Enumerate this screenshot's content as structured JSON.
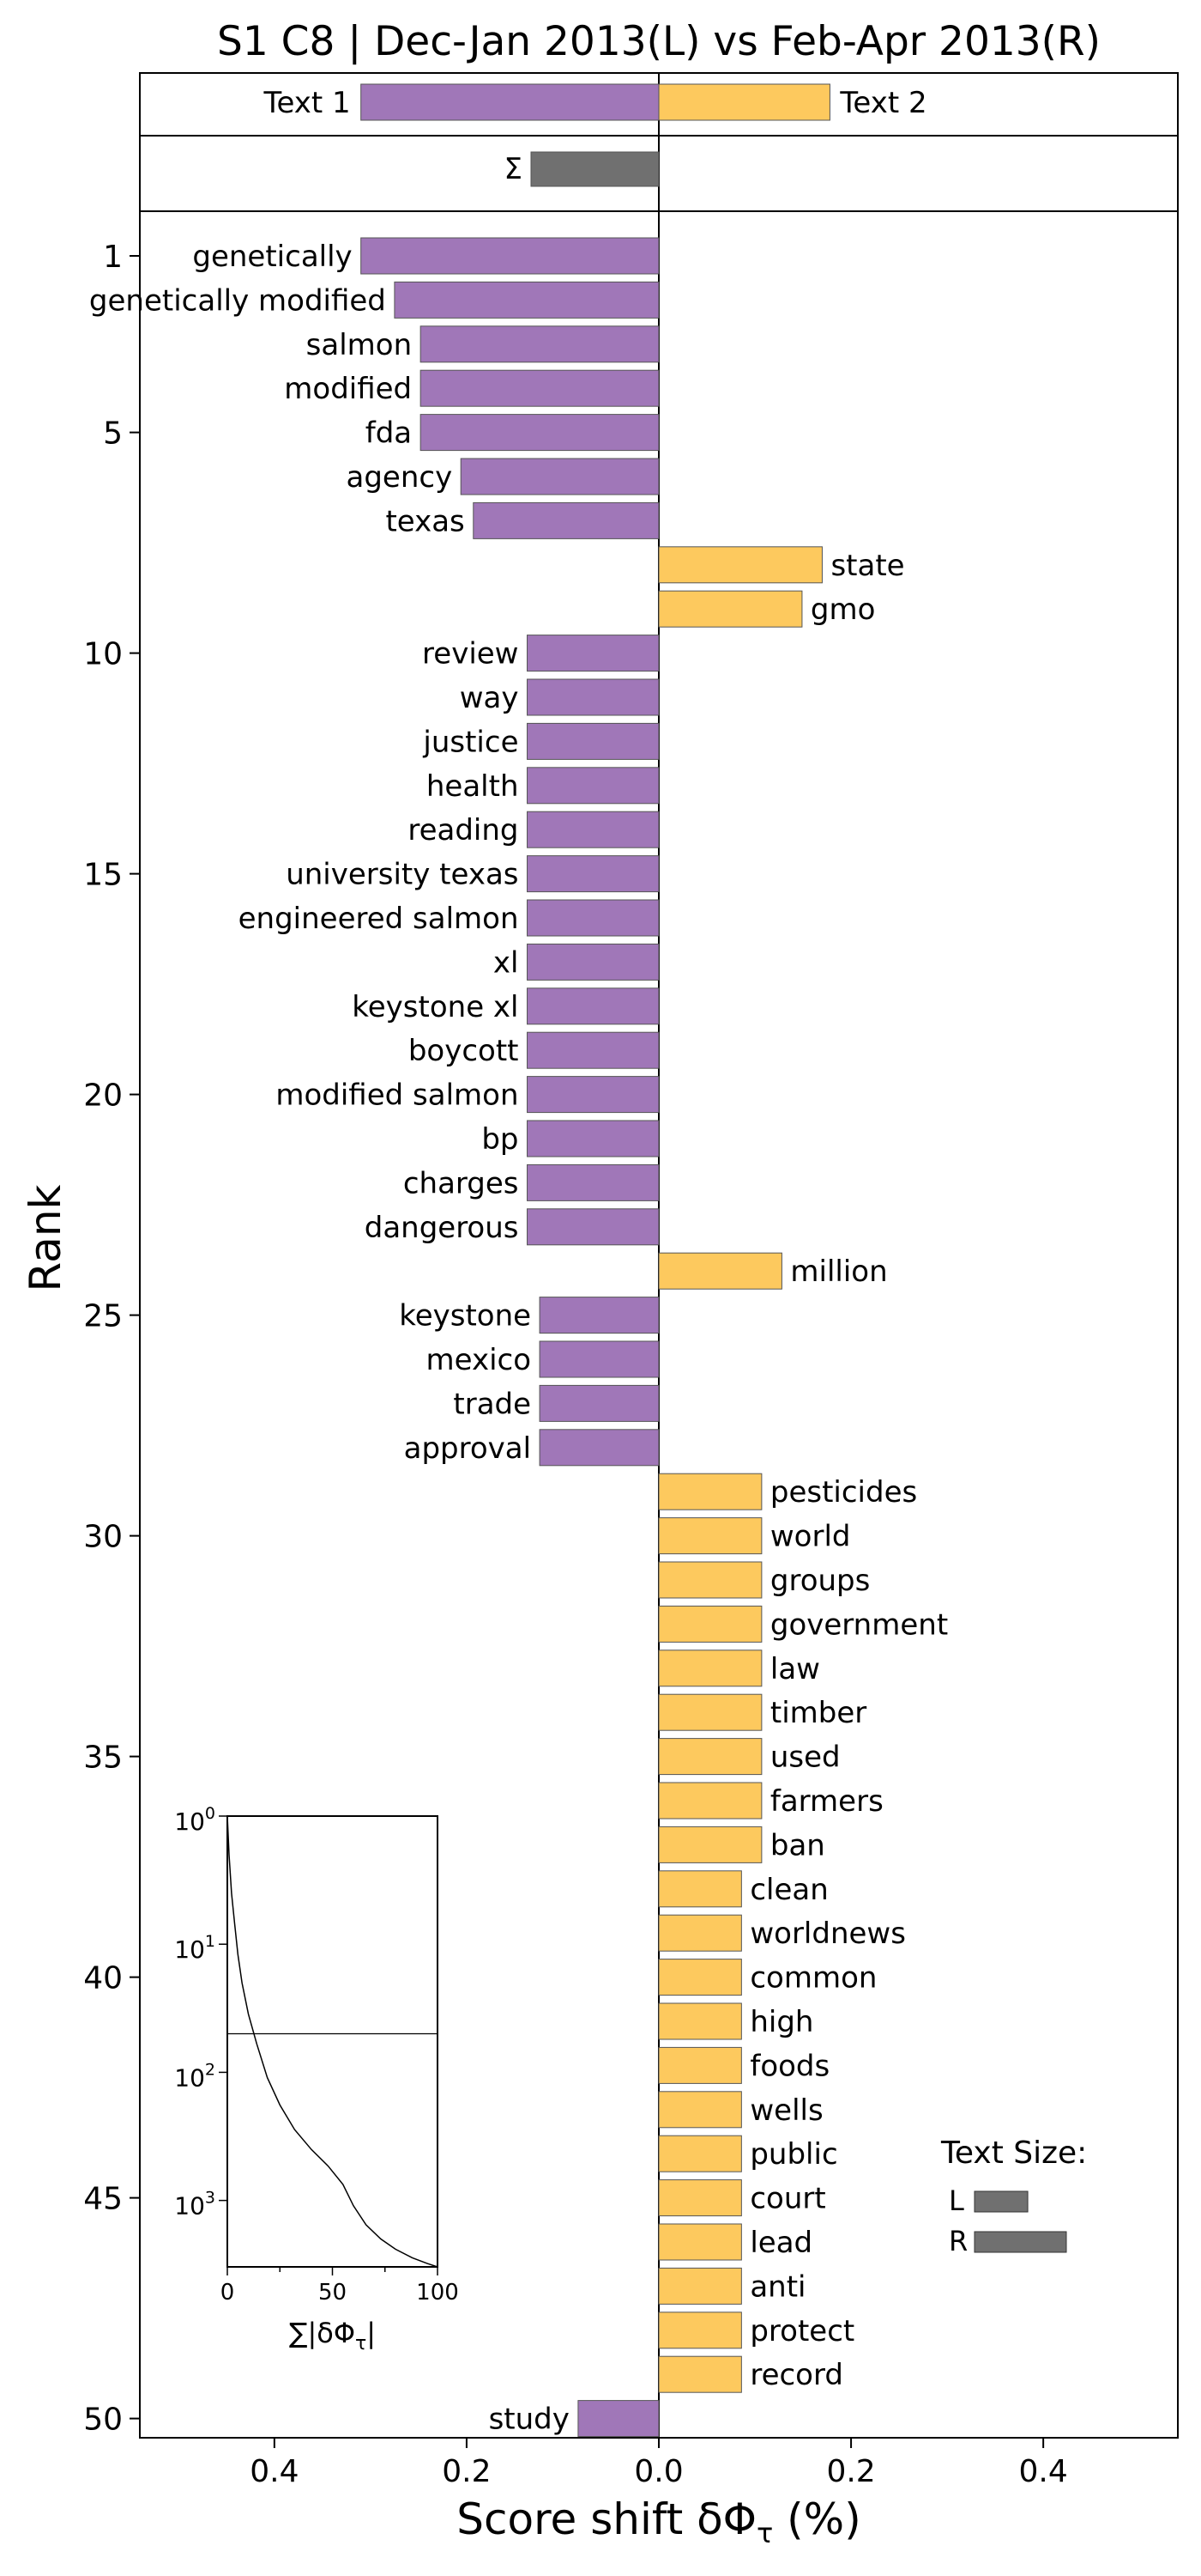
{
  "chart_data": {
    "type": "bar",
    "orientation": "horizontal",
    "title": "S1 C8 | Dec-Jan 2013(L) vs Feb-Apr 2013(R)",
    "xlabel": "Score shift δΦ",
    "xlabel_sub": "τ",
    "xlabel_unit": " (%)",
    "ylabel": "Rank",
    "xlim": [
      -0.54,
      0.54
    ],
    "x_ticks": [
      -0.4,
      -0.2,
      0.0,
      0.2,
      0.4
    ],
    "x_tick_labels": [
      "0.4",
      "0.2",
      "0.0",
      "0.2",
      "0.4"
    ],
    "rank_ticks": [
      1,
      5,
      10,
      15,
      20,
      25,
      30,
      35,
      40,
      45,
      50
    ],
    "colors": {
      "left": "#a077b8",
      "right": "#fdc95e",
      "sigma": "#707070",
      "edge": "#555555"
    },
    "summary_bars": [
      {
        "label": "Text 1",
        "value": -0.31,
        "side": "left"
      },
      {
        "label": "Text 2",
        "value": 0.178,
        "side": "right"
      }
    ],
    "sigma_bar": {
      "label": "Σ",
      "value": -0.133
    },
    "words": [
      {
        "rank": 1,
        "word": "genetically",
        "value": -0.31
      },
      {
        "rank": 2,
        "word": "genetically modified",
        "value": -0.275
      },
      {
        "rank": 3,
        "word": "salmon",
        "value": -0.248
      },
      {
        "rank": 4,
        "word": "modified",
        "value": -0.248
      },
      {
        "rank": 5,
        "word": "fda",
        "value": -0.248
      },
      {
        "rank": 6,
        "word": "agency",
        "value": -0.206
      },
      {
        "rank": 7,
        "word": "texas",
        "value": -0.193
      },
      {
        "rank": 8,
        "word": "state",
        "value": 0.17
      },
      {
        "rank": 9,
        "word": "gmo",
        "value": 0.149
      },
      {
        "rank": 10,
        "word": "review",
        "value": -0.137
      },
      {
        "rank": 11,
        "word": "way",
        "value": -0.137
      },
      {
        "rank": 12,
        "word": "justice",
        "value": -0.137
      },
      {
        "rank": 13,
        "word": "health",
        "value": -0.137
      },
      {
        "rank": 14,
        "word": "reading",
        "value": -0.137
      },
      {
        "rank": 15,
        "word": "university texas",
        "value": -0.137
      },
      {
        "rank": 16,
        "word": "engineered salmon",
        "value": -0.137
      },
      {
        "rank": 17,
        "word": "xl",
        "value": -0.137
      },
      {
        "rank": 18,
        "word": "keystone xl",
        "value": -0.137
      },
      {
        "rank": 19,
        "word": "boycott",
        "value": -0.137
      },
      {
        "rank": 20,
        "word": "modified salmon",
        "value": -0.137
      },
      {
        "rank": 21,
        "word": "bp",
        "value": -0.137
      },
      {
        "rank": 22,
        "word": "charges",
        "value": -0.137
      },
      {
        "rank": 23,
        "word": "dangerous",
        "value": -0.137
      },
      {
        "rank": 24,
        "word": "million",
        "value": 0.128
      },
      {
        "rank": 25,
        "word": "keystone",
        "value": -0.124
      },
      {
        "rank": 26,
        "word": "mexico",
        "value": -0.124
      },
      {
        "rank": 27,
        "word": "trade",
        "value": -0.124
      },
      {
        "rank": 28,
        "word": "approval",
        "value": -0.124
      },
      {
        "rank": 29,
        "word": "pesticides",
        "value": 0.107
      },
      {
        "rank": 30,
        "word": "world",
        "value": 0.107
      },
      {
        "rank": 31,
        "word": "groups",
        "value": 0.107
      },
      {
        "rank": 32,
        "word": "government",
        "value": 0.107
      },
      {
        "rank": 33,
        "word": "law",
        "value": 0.107
      },
      {
        "rank": 34,
        "word": "timber",
        "value": 0.107
      },
      {
        "rank": 35,
        "word": "used",
        "value": 0.107
      },
      {
        "rank": 36,
        "word": "farmers",
        "value": 0.107
      },
      {
        "rank": 37,
        "word": "ban",
        "value": 0.107
      },
      {
        "rank": 38,
        "word": "clean",
        "value": 0.086
      },
      {
        "rank": 39,
        "word": "worldnews",
        "value": 0.086
      },
      {
        "rank": 40,
        "word": "common",
        "value": 0.086
      },
      {
        "rank": 41,
        "word": "high",
        "value": 0.086
      },
      {
        "rank": 42,
        "word": "foods",
        "value": 0.086
      },
      {
        "rank": 43,
        "word": "wells",
        "value": 0.086
      },
      {
        "rank": 44,
        "word": "public",
        "value": 0.086
      },
      {
        "rank": 45,
        "word": "court",
        "value": 0.086
      },
      {
        "rank": 46,
        "word": "lead",
        "value": 0.086
      },
      {
        "rank": 47,
        "word": "anti",
        "value": 0.086
      },
      {
        "rank": 48,
        "word": "protect",
        "value": 0.086
      },
      {
        "rank": 49,
        "word": "record",
        "value": 0.086
      },
      {
        "rank": 50,
        "word": "study",
        "value": -0.084
      }
    ],
    "inset": {
      "type": "line",
      "xlabel": "∑|δΦ",
      "xlabel_sub": "τ",
      "xlabel_end": "|",
      "x_ticks": [
        0,
        50,
        100
      ],
      "x_tick_labels": [
        "0",
        "50",
        "100"
      ],
      "y_scale": "log",
      "y_ticks": [
        1,
        10,
        100,
        1000
      ],
      "y_tick_bases": [
        "10",
        "10",
        "10",
        "10"
      ],
      "y_tick_exponents": [
        "0",
        "1",
        "2",
        "3"
      ],
      "reference_rank": 50,
      "curve": [
        [
          0,
          1
        ],
        [
          0.8,
          2
        ],
        [
          2,
          4
        ],
        [
          3.5,
          7
        ],
        [
          5,
          12
        ],
        [
          7,
          20
        ],
        [
          10,
          35
        ],
        [
          14,
          60
        ],
        [
          19,
          110
        ],
        [
          25,
          180
        ],
        [
          32,
          280
        ],
        [
          40,
          400
        ],
        [
          48,
          540
        ],
        [
          55,
          750
        ],
        [
          60,
          1100
        ],
        [
          66,
          1550
        ],
        [
          73,
          2000
        ],
        [
          80,
          2400
        ],
        [
          88,
          2800
        ],
        [
          95,
          3100
        ],
        [
          100,
          3300
        ]
      ]
    },
    "size_legend": {
      "title": "Text Size:",
      "items": [
        {
          "label": "L",
          "size": 0.58
        },
        {
          "label": "R",
          "size": 1.0
        }
      ]
    }
  }
}
